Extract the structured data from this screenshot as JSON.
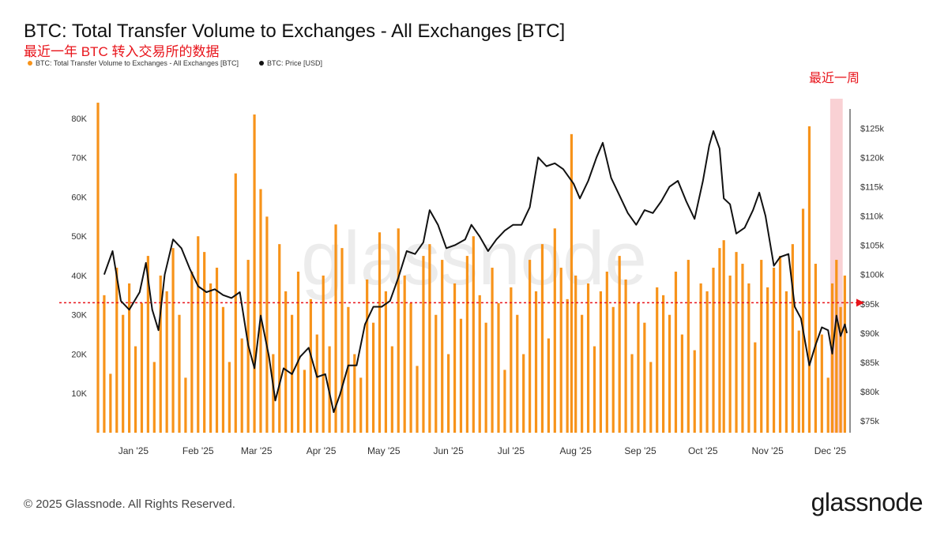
{
  "header": {
    "title": "BTC: Total Transfer Volume to Exchanges - All Exchanges [BTC]",
    "subtitle": "最近一年 BTC 转入交易所的数据"
  },
  "legend": {
    "series1": "BTC: Total Transfer Volume to Exchanges - All Exchanges [BTC]",
    "series2": "BTC: Price [USD]"
  },
  "annotation": {
    "recent_week": "最近一周"
  },
  "footer": {
    "copyright": "© 2025 Glassnode. All Rights Reserved.",
    "brand": "glassnode"
  },
  "watermark": "glassnode",
  "colors": {
    "bar": "#f7931a",
    "price_line": "#111111",
    "highlight": "#f8c9cc",
    "reference_line": "#e8141b",
    "axis_text": "#333333"
  },
  "chart_data": {
    "type": "bar+line",
    "x_ticks": [
      "Jan '25",
      "Feb '25",
      "Mar '25",
      "Apr '25",
      "May '25",
      "Jun '25",
      "Jul '25",
      "Aug '25",
      "Sep '25",
      "Oct '25",
      "Nov '25",
      "Dec '25"
    ],
    "left_axis": {
      "ticks": [
        "10K",
        "20K",
        "30K",
        "40K",
        "50K",
        "60K",
        "70K",
        "80K"
      ],
      "range": [
        0,
        82000
      ]
    },
    "right_axis": {
      "ticks": [
        "$75k",
        "$80k",
        "$85k",
        "$90k",
        "$95k",
        "$100k",
        "$105k",
        "$110k",
        "$115k",
        "$120k",
        "$125k"
      ],
      "range": [
        73000,
        128000
      ],
      "scale": "linear"
    },
    "x_range": [
      "2024-12-15",
      "2025-12-09"
    ],
    "highlight_range": [
      "2025-12-01",
      "2025-12-07"
    ],
    "reference_price": 95200,
    "series": [
      {
        "name": "BTC: Total Transfer Volume to Exchanges - All Exchanges [BTC]",
        "type": "bar",
        "axis": "left",
        "values": [
          [
            "2024-12-15",
            84000
          ],
          [
            "2024-12-18",
            35000
          ],
          [
            "2024-12-21",
            15000
          ],
          [
            "2024-12-24",
            42000
          ],
          [
            "2024-12-27",
            30000
          ],
          [
            "2024-12-30",
            38000
          ],
          [
            "2025-01-02",
            22000
          ],
          [
            "2025-01-05",
            33000
          ],
          [
            "2025-01-08",
            45000
          ],
          [
            "2025-01-11",
            18000
          ],
          [
            "2025-01-14",
            40000
          ],
          [
            "2025-01-17",
            36000
          ],
          [
            "2025-01-20",
            47000
          ],
          [
            "2025-01-23",
            30000
          ],
          [
            "2025-01-26",
            14000
          ],
          [
            "2025-01-29",
            41000
          ],
          [
            "2025-02-01",
            50000
          ],
          [
            "2025-02-04",
            46000
          ],
          [
            "2025-02-07",
            38000
          ],
          [
            "2025-02-10",
            42000
          ],
          [
            "2025-02-13",
            32000
          ],
          [
            "2025-02-16",
            18000
          ],
          [
            "2025-02-19",
            66000
          ],
          [
            "2025-02-22",
            24000
          ],
          [
            "2025-02-25",
            44000
          ],
          [
            "2025-02-28",
            81000
          ],
          [
            "2025-03-03",
            62000
          ],
          [
            "2025-03-06",
            55000
          ],
          [
            "2025-03-09",
            20000
          ],
          [
            "2025-03-12",
            48000
          ],
          [
            "2025-03-15",
            36000
          ],
          [
            "2025-03-18",
            30000
          ],
          [
            "2025-03-21",
            41000
          ],
          [
            "2025-03-24",
            16000
          ],
          [
            "2025-03-27",
            34000
          ],
          [
            "2025-03-30",
            25000
          ],
          [
            "2025-04-02",
            40000
          ],
          [
            "2025-04-05",
            22000
          ],
          [
            "2025-04-08",
            53000
          ],
          [
            "2025-04-11",
            47000
          ],
          [
            "2025-04-14",
            32000
          ],
          [
            "2025-04-17",
            20000
          ],
          [
            "2025-04-20",
            14000
          ],
          [
            "2025-04-23",
            39000
          ],
          [
            "2025-04-26",
            28000
          ],
          [
            "2025-04-29",
            51000
          ],
          [
            "2025-05-02",
            36000
          ],
          [
            "2025-05-05",
            22000
          ],
          [
            "2025-05-08",
            52000
          ],
          [
            "2025-05-11",
            40000
          ],
          [
            "2025-05-14",
            33000
          ],
          [
            "2025-05-17",
            17000
          ],
          [
            "2025-05-20",
            45000
          ],
          [
            "2025-05-23",
            48000
          ],
          [
            "2025-05-26",
            30000
          ],
          [
            "2025-05-29",
            44000
          ],
          [
            "2025-06-01",
            20000
          ],
          [
            "2025-06-04",
            38000
          ],
          [
            "2025-06-07",
            29000
          ],
          [
            "2025-06-10",
            45000
          ],
          [
            "2025-06-13",
            50000
          ],
          [
            "2025-06-16",
            35000
          ],
          [
            "2025-06-19",
            28000
          ],
          [
            "2025-06-22",
            42000
          ],
          [
            "2025-06-25",
            33000
          ],
          [
            "2025-06-28",
            16000
          ],
          [
            "2025-07-01",
            37000
          ],
          [
            "2025-07-04",
            30000
          ],
          [
            "2025-07-07",
            20000
          ],
          [
            "2025-07-10",
            44000
          ],
          [
            "2025-07-13",
            36000
          ],
          [
            "2025-07-16",
            48000
          ],
          [
            "2025-07-19",
            24000
          ],
          [
            "2025-07-22",
            52000
          ],
          [
            "2025-07-25",
            42000
          ],
          [
            "2025-07-28",
            34000
          ],
          [
            "2025-07-30",
            76000
          ],
          [
            "2025-08-01",
            40000
          ],
          [
            "2025-08-04",
            30000
          ],
          [
            "2025-08-07",
            38000
          ],
          [
            "2025-08-10",
            22000
          ],
          [
            "2025-08-13",
            36000
          ],
          [
            "2025-08-16",
            41000
          ],
          [
            "2025-08-19",
            32000
          ],
          [
            "2025-08-22",
            45000
          ],
          [
            "2025-08-25",
            39000
          ],
          [
            "2025-08-28",
            20000
          ],
          [
            "2025-08-31",
            33000
          ],
          [
            "2025-09-03",
            28000
          ],
          [
            "2025-09-06",
            18000
          ],
          [
            "2025-09-09",
            37000
          ],
          [
            "2025-09-12",
            35000
          ],
          [
            "2025-09-15",
            30000
          ],
          [
            "2025-09-18",
            41000
          ],
          [
            "2025-09-21",
            25000
          ],
          [
            "2025-09-24",
            44000
          ],
          [
            "2025-09-27",
            21000
          ],
          [
            "2025-09-30",
            38000
          ],
          [
            "2025-10-03",
            36000
          ],
          [
            "2025-10-06",
            42000
          ],
          [
            "2025-10-09",
            47000
          ],
          [
            "2025-10-11",
            49000
          ],
          [
            "2025-10-14",
            40000
          ],
          [
            "2025-10-17",
            46000
          ],
          [
            "2025-10-20",
            43000
          ],
          [
            "2025-10-23",
            38000
          ],
          [
            "2025-10-26",
            23000
          ],
          [
            "2025-10-29",
            44000
          ],
          [
            "2025-11-01",
            37000
          ],
          [
            "2025-11-04",
            42000
          ],
          [
            "2025-11-07",
            45000
          ],
          [
            "2025-11-10",
            36000
          ],
          [
            "2025-11-13",
            48000
          ],
          [
            "2025-11-16",
            26000
          ],
          [
            "2025-11-18",
            57000
          ],
          [
            "2025-11-21",
            78000
          ],
          [
            "2025-11-24",
            43000
          ],
          [
            "2025-11-27",
            25000
          ],
          [
            "2025-11-30",
            14000
          ],
          [
            "2025-12-02",
            38000
          ],
          [
            "2025-12-04",
            44000
          ],
          [
            "2025-12-06",
            32000
          ],
          [
            "2025-12-08",
            40000
          ]
        ]
      },
      {
        "name": "BTC: Price [USD]",
        "type": "line",
        "axis": "right",
        "values": [
          [
            "2024-12-18",
            100000
          ],
          [
            "2024-12-22",
            104000
          ],
          [
            "2024-12-26",
            95500
          ],
          [
            "2024-12-30",
            94000
          ],
          [
            "2025-01-04",
            97000
          ],
          [
            "2025-01-07",
            102000
          ],
          [
            "2025-01-10",
            94000
          ],
          [
            "2025-01-13",
            90500
          ],
          [
            "2025-01-16",
            100000
          ],
          [
            "2025-01-20",
            106000
          ],
          [
            "2025-01-24",
            104500
          ],
          [
            "2025-01-28",
            101000
          ],
          [
            "2025-02-01",
            98000
          ],
          [
            "2025-02-05",
            97000
          ],
          [
            "2025-02-09",
            97500
          ],
          [
            "2025-02-13",
            96500
          ],
          [
            "2025-02-17",
            96000
          ],
          [
            "2025-02-21",
            97000
          ],
          [
            "2025-02-25",
            88000
          ],
          [
            "2025-02-28",
            84000
          ],
          [
            "2025-03-03",
            93000
          ],
          [
            "2025-03-07",
            86000
          ],
          [
            "2025-03-10",
            78500
          ],
          [
            "2025-03-14",
            84000
          ],
          [
            "2025-03-18",
            83000
          ],
          [
            "2025-03-22",
            86000
          ],
          [
            "2025-03-26",
            87500
          ],
          [
            "2025-03-30",
            82500
          ],
          [
            "2025-04-03",
            83000
          ],
          [
            "2025-04-07",
            76500
          ],
          [
            "2025-04-10",
            79500
          ],
          [
            "2025-04-14",
            84500
          ],
          [
            "2025-04-18",
            84500
          ],
          [
            "2025-04-22",
            91500
          ],
          [
            "2025-04-26",
            94500
          ],
          [
            "2025-04-30",
            94500
          ],
          [
            "2025-05-04",
            95500
          ],
          [
            "2025-05-08",
            99500
          ],
          [
            "2025-05-12",
            104000
          ],
          [
            "2025-05-16",
            103500
          ],
          [
            "2025-05-20",
            105500
          ],
          [
            "2025-05-23",
            111000
          ],
          [
            "2025-05-27",
            108500
          ],
          [
            "2025-05-31",
            104500
          ],
          [
            "2025-06-04",
            105000
          ],
          [
            "2025-06-09",
            106000
          ],
          [
            "2025-06-12",
            108500
          ],
          [
            "2025-06-16",
            106500
          ],
          [
            "2025-06-20",
            104000
          ],
          [
            "2025-06-24",
            106000
          ],
          [
            "2025-06-28",
            107500
          ],
          [
            "2025-07-02",
            108500
          ],
          [
            "2025-07-06",
            108500
          ],
          [
            "2025-07-10",
            111500
          ],
          [
            "2025-07-14",
            120000
          ],
          [
            "2025-07-18",
            118500
          ],
          [
            "2025-07-22",
            119000
          ],
          [
            "2025-07-26",
            118000
          ],
          [
            "2025-07-31",
            115500
          ],
          [
            "2025-08-03",
            113000
          ],
          [
            "2025-08-07",
            116000
          ],
          [
            "2025-08-11",
            120000
          ],
          [
            "2025-08-14",
            122500
          ],
          [
            "2025-08-18",
            116500
          ],
          [
            "2025-08-22",
            113500
          ],
          [
            "2025-08-26",
            110500
          ],
          [
            "2025-08-30",
            108500
          ],
          [
            "2025-09-03",
            111000
          ],
          [
            "2025-09-07",
            110500
          ],
          [
            "2025-09-11",
            112500
          ],
          [
            "2025-09-15",
            115000
          ],
          [
            "2025-09-19",
            116000
          ],
          [
            "2025-09-23",
            112500
          ],
          [
            "2025-09-27",
            109500
          ],
          [
            "2025-10-01",
            116000
          ],
          [
            "2025-10-04",
            122000
          ],
          [
            "2025-10-06",
            124500
          ],
          [
            "2025-10-09",
            121500
          ],
          [
            "2025-10-11",
            113000
          ],
          [
            "2025-10-14",
            112000
          ],
          [
            "2025-10-17",
            107000
          ],
          [
            "2025-10-21",
            108000
          ],
          [
            "2025-10-25",
            111000
          ],
          [
            "2025-10-28",
            114000
          ],
          [
            "2025-10-31",
            110000
          ],
          [
            "2025-11-04",
            101500
          ],
          [
            "2025-11-07",
            103000
          ],
          [
            "2025-11-11",
            103500
          ],
          [
            "2025-11-14",
            94500
          ],
          [
            "2025-11-17",
            92500
          ],
          [
            "2025-11-21",
            84500
          ],
          [
            "2025-11-24",
            88000
          ],
          [
            "2025-11-27",
            91000
          ],
          [
            "2025-11-30",
            90500
          ],
          [
            "2025-12-02",
            86500
          ],
          [
            "2025-12-04",
            93000
          ],
          [
            "2025-12-06",
            89500
          ],
          [
            "2025-12-08",
            91500
          ],
          [
            "2025-12-09",
            90000
          ]
        ]
      }
    ]
  }
}
